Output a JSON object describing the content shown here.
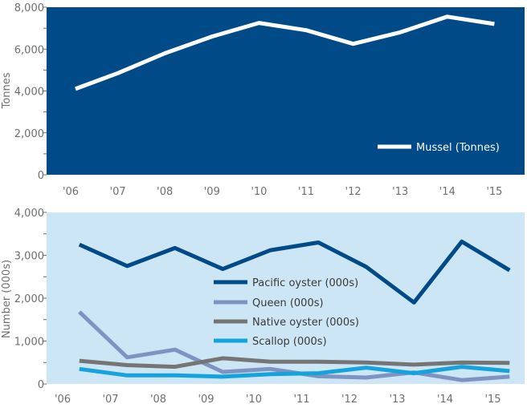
{
  "chart_data": [
    {
      "type": "line",
      "categories": [
        "'06",
        "'07",
        "'08",
        "'09",
        "'10",
        "'11",
        "'12",
        "'13",
        "'14",
        "'15"
      ],
      "ylabel": "Tonnes",
      "xlabel": "",
      "ylim": [
        0,
        8000
      ],
      "yticks": [
        "0",
        "2,000",
        "4,000",
        "6,000",
        "8,000"
      ],
      "ytick_values": [
        0,
        2000,
        4000,
        6000,
        8000
      ],
      "background_color": "#004b87",
      "legend_position": "bottom-right",
      "series": [
        {
          "name": "Mussel (Tonnes)",
          "color": "#ffffff",
          "x": [
            0.1,
            1,
            2,
            3,
            4,
            5,
            6,
            7,
            8,
            9
          ],
          "values": [
            4100,
            4850,
            5800,
            6600,
            7250,
            6900,
            6250,
            6800,
            7550,
            7200
          ]
        }
      ]
    },
    {
      "type": "line",
      "categories": [
        "'06",
        "'07",
        "'08",
        "'09",
        "'10",
        "'11",
        "'12",
        "'13",
        "'14",
        "'15"
      ],
      "ylabel": "Number (000s)",
      "xlabel": "",
      "ylim": [
        0,
        4000
      ],
      "yticks": [
        "0",
        "1,000",
        "2,000",
        "3,000",
        "4,000"
      ],
      "ytick_values": [
        0,
        1000,
        2000,
        3000,
        4000
      ],
      "background_color": "#cde6f5",
      "legend_position": "center",
      "series": [
        {
          "name": "Pacific oyster (000s)",
          "color": "#004b87",
          "x": [
            0.35,
            1.35,
            2.35,
            3.35,
            4.35,
            5.35,
            6.35,
            7.35,
            8.35,
            9.35
          ],
          "values": [
            3250,
            2750,
            3170,
            2680,
            3120,
            3300,
            2730,
            1900,
            3320,
            2650
          ]
        },
        {
          "name": "Queen (000s)",
          "color": "#7f93c2",
          "x": [
            0.35,
            1.35,
            2.35,
            3.35,
            4.35,
            5.35,
            6.35,
            7.35,
            8.35,
            9.35
          ],
          "values": [
            1680,
            620,
            800,
            280,
            350,
            180,
            150,
            270,
            90,
            170
          ]
        },
        {
          "name": "Native oyster (000s)",
          "color": "#757575",
          "x": [
            0.35,
            1.35,
            2.35,
            3.35,
            4.35,
            5.35,
            6.35,
            7.35,
            8.35,
            9.35
          ],
          "values": [
            540,
            440,
            400,
            600,
            520,
            520,
            500,
            450,
            500,
            490
          ]
        },
        {
          "name": "Scallop (000s)",
          "color": "#14a3dc",
          "x": [
            0.35,
            1.35,
            2.35,
            3.35,
            4.35,
            5.35,
            6.35,
            7.35,
            8.35,
            9.35
          ],
          "values": [
            350,
            200,
            200,
            170,
            230,
            250,
            380,
            250,
            400,
            300
          ]
        }
      ]
    }
  ]
}
